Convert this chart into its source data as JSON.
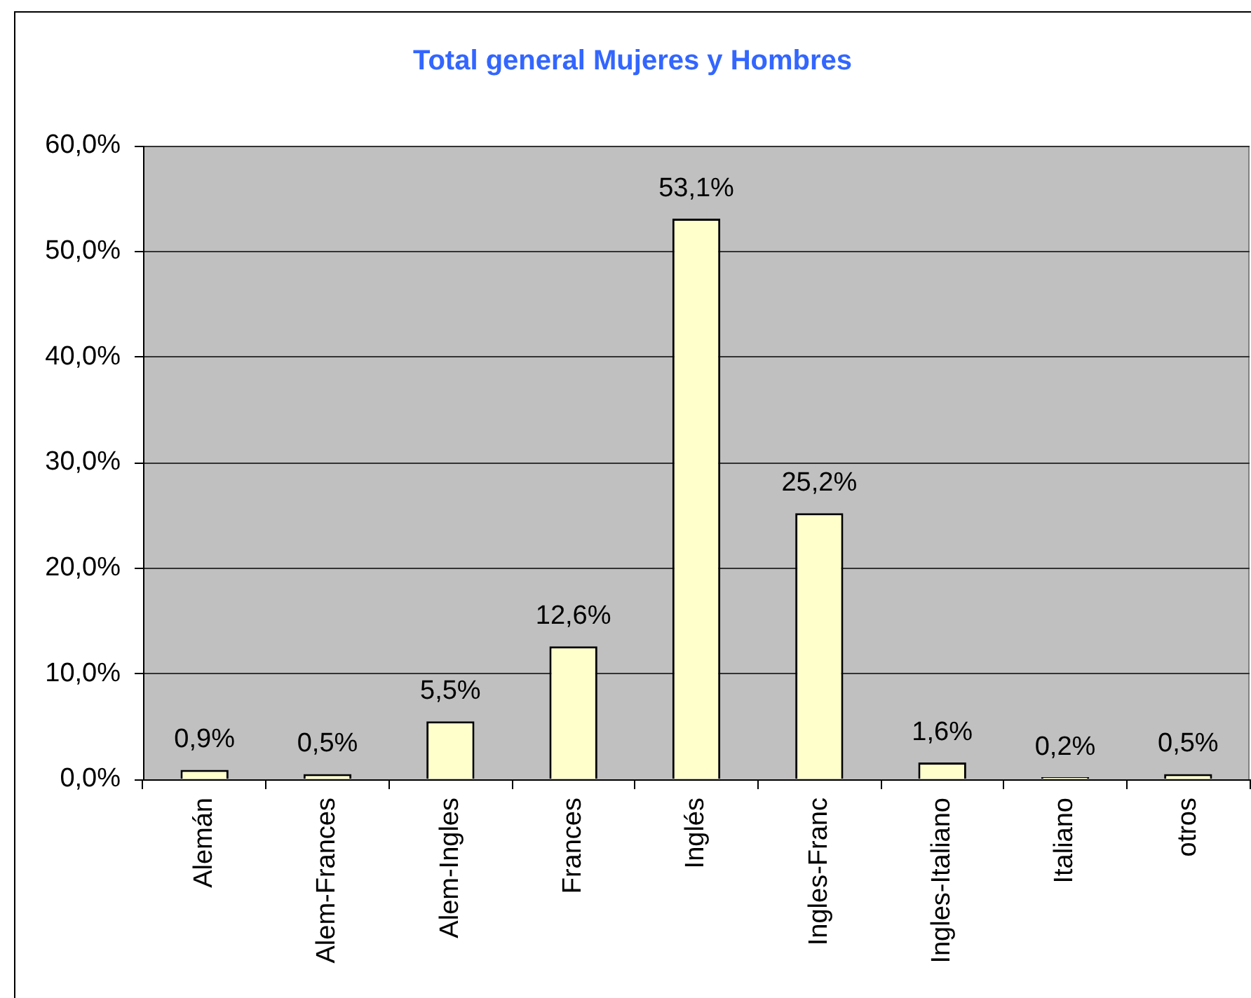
{
  "chart_data": {
    "type": "bar",
    "title": "Total general Mujeres y Hombres",
    "categories": [
      "Alemán",
      "Alem-Frances",
      "Alem-Ingles",
      "Frances",
      "Inglés",
      "Ingles-Franc",
      "Ingles-Italiano",
      "Italiano",
      "otros"
    ],
    "values": [
      0.9,
      0.5,
      5.5,
      12.6,
      53.1,
      25.2,
      1.6,
      0.2,
      0.5
    ],
    "value_labels": [
      "0,9%",
      "0,5%",
      "5,5%",
      "12,6%",
      "53,1%",
      "25,2%",
      "1,6%",
      "0,2%",
      "0,5%"
    ],
    "color": "#ffffcc",
    "ylim": [
      0,
      60
    ],
    "yticks": [
      {
        "value": 0,
        "label": "0,0%"
      },
      {
        "value": 10,
        "label": "10,0%"
      },
      {
        "value": 20,
        "label": "20,0%"
      },
      {
        "value": 30,
        "label": "30,0%"
      },
      {
        "value": 40,
        "label": "40,0%"
      },
      {
        "value": 50,
        "label": "50,0%"
      },
      {
        "value": 60,
        "label": "60,0%"
      }
    ],
    "grid": "y"
  }
}
